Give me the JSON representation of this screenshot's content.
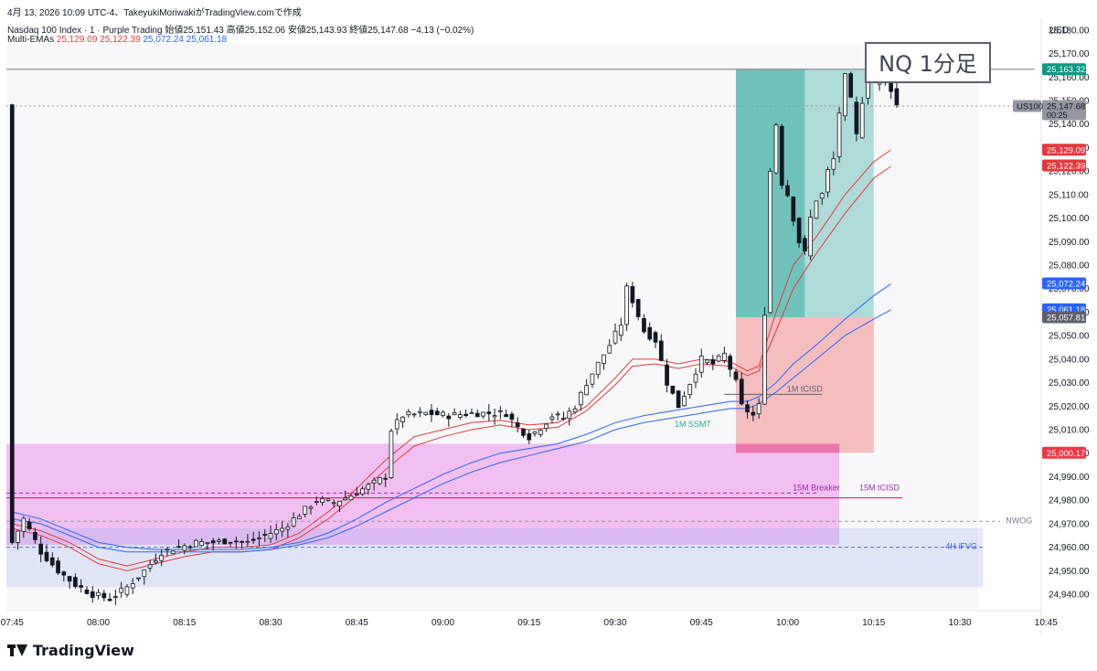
{
  "header": {
    "line1": "4月 13, 2026 10:09 UTC-4、TakeyukiMoriwakiがTradingView.comで作成",
    "symbol": "Nasdaq 100 Index · 1 · Purple Trading",
    "open_label": "始値",
    "open": "25,151.43",
    "high_label": "高値",
    "high": "25,152.06",
    "low_label": "安値",
    "low": "25,143.93",
    "close_label": "終値",
    "close": "25,147.68",
    "change": "−4.13 (−0.02%)",
    "ema_label": "Multi-EMAs",
    "ema_values": [
      "25,129.09",
      "25,122.39",
      "25,072.24",
      "25,061.18"
    ]
  },
  "title_box": "NQ 1分足",
  "footer": {
    "brand": "TradingView"
  },
  "chart_data": {
    "type": "candlestick",
    "currency": "USD",
    "ylim": [
      24933,
      25185
    ],
    "y_ticks": [
      24940,
      24950,
      24960,
      24970,
      24980,
      24990,
      25000,
      25010,
      25020,
      25030,
      25040,
      25050,
      25060,
      25070,
      25080,
      25090,
      25100,
      25110,
      25120,
      25130,
      25140,
      25150,
      25160,
      25170,
      25180
    ],
    "x_ticks": [
      "07:45",
      "08:00",
      "08:15",
      "08:30",
      "08:45",
      "09:00",
      "09:15",
      "09:30",
      "09:45",
      "10:00",
      "10:15",
      "10:30",
      "10:45"
    ],
    "x_tick_minutes": [
      0,
      15,
      30,
      45,
      60,
      75,
      90,
      105,
      120,
      135,
      150,
      165,
      180
    ],
    "x_range_minutes": [
      -1,
      179
    ],
    "colors": {
      "up": "#ffffff",
      "down": "#131722",
      "ema_red": "#e5383b",
      "ema_blue": "#2962ff"
    },
    "control_points": [
      [
        0,
        24962
      ],
      [
        2,
        24972
      ],
      [
        5,
        24958
      ],
      [
        8,
        24950
      ],
      [
        11,
        24944
      ],
      [
        14,
        24940
      ],
      [
        17,
        24938
      ],
      [
        20,
        24943
      ],
      [
        23,
        24950
      ],
      [
        26,
        24958
      ],
      [
        29,
        24960
      ],
      [
        32,
        24962
      ],
      [
        35,
        24962
      ],
      [
        38,
        24963
      ],
      [
        41,
        24962
      ],
      [
        44,
        24965
      ],
      [
        47,
        24968
      ],
      [
        50,
        24974
      ],
      [
        53,
        24980
      ],
      [
        56,
        24979
      ],
      [
        59,
        24982
      ],
      [
        62,
        24986
      ],
      [
        65,
        24990
      ],
      [
        66,
        25010
      ],
      [
        68,
        25016
      ],
      [
        72,
        25017
      ],
      [
        76,
        25016
      ],
      [
        80,
        25017
      ],
      [
        84,
        25017
      ],
      [
        86,
        25017
      ],
      [
        88,
        25011
      ],
      [
        90,
        25007
      ],
      [
        92,
        25011
      ],
      [
        94,
        25016
      ],
      [
        96,
        25015
      ],
      [
        98,
        25020
      ],
      [
        100,
        25030
      ],
      [
        102,
        25038
      ],
      [
        104,
        25046
      ],
      [
        106,
        25055
      ],
      [
        107,
        25070
      ],
      [
        108,
        25065
      ],
      [
        110,
        25052
      ],
      [
        112,
        25048
      ],
      [
        114,
        25030
      ],
      [
        116,
        25020
      ],
      [
        118,
        25030
      ],
      [
        120,
        25040
      ],
      [
        122,
        25038
      ],
      [
        124,
        25042
      ],
      [
        126,
        25030
      ],
      [
        127,
        25020
      ],
      [
        128,
        25018
      ],
      [
        129,
        25016
      ],
      [
        130,
        25020
      ],
      [
        131,
        25060
      ],
      [
        132,
        25120
      ],
      [
        133,
        25140
      ],
      [
        134,
        25115
      ],
      [
        135,
        25110
      ],
      [
        136,
        25100
      ],
      [
        137,
        25090
      ],
      [
        138,
        25085
      ],
      [
        139,
        25100
      ],
      [
        140,
        25108
      ],
      [
        141,
        25110
      ],
      [
        142,
        25120
      ],
      [
        143,
        25125
      ],
      [
        144,
        25145
      ],
      [
        145,
        25160
      ],
      [
        146,
        25150
      ],
      [
        147,
        25135
      ],
      [
        148,
        25150
      ],
      [
        149,
        25165
      ],
      [
        150,
        25158
      ],
      [
        151,
        25160
      ],
      [
        152,
        25163
      ],
      [
        153,
        25155
      ],
      [
        154,
        25148
      ]
    ],
    "emas": [
      {
        "name": "",
        "color": "#e5383b",
        "points": [
          [
            0,
            24970
          ],
          [
            5,
            24967
          ],
          [
            10,
            24962
          ],
          [
            15,
            24955
          ],
          [
            20,
            24952
          ],
          [
            25,
            24955
          ],
          [
            30,
            24958
          ],
          [
            35,
            24960
          ],
          [
            40,
            24960
          ],
          [
            45,
            24961
          ],
          [
            50,
            24966
          ],
          [
            55,
            24975
          ],
          [
            60,
            24985
          ],
          [
            65,
            24997
          ],
          [
            70,
            25007
          ],
          [
            75,
            25010
          ],
          [
            80,
            25013
          ],
          [
            85,
            25014
          ],
          [
            90,
            25012
          ],
          [
            95,
            25013
          ],
          [
            100,
            25020
          ],
          [
            105,
            25032
          ],
          [
            108,
            25040
          ],
          [
            112,
            25040
          ],
          [
            116,
            25038
          ],
          [
            120,
            25040
          ],
          [
            125,
            25039
          ],
          [
            128,
            25035
          ],
          [
            130,
            25037
          ],
          [
            133,
            25060
          ],
          [
            136,
            25080
          ],
          [
            140,
            25092
          ],
          [
            145,
            25110
          ],
          [
            150,
            25124
          ],
          [
            153,
            25129
          ]
        ]
      },
      {
        "name": "",
        "color": "#e5383b",
        "points": [
          [
            0,
            24968
          ],
          [
            5,
            24965
          ],
          [
            10,
            24960
          ],
          [
            15,
            24953
          ],
          [
            20,
            24950
          ],
          [
            25,
            24953
          ],
          [
            30,
            24956
          ],
          [
            35,
            24958
          ],
          [
            40,
            24958
          ],
          [
            45,
            24959
          ],
          [
            50,
            24964
          ],
          [
            55,
            24972
          ],
          [
            60,
            24982
          ],
          [
            65,
            24993
          ],
          [
            70,
            25003
          ],
          [
            75,
            25007
          ],
          [
            80,
            25010
          ],
          [
            85,
            25012
          ],
          [
            90,
            25010
          ],
          [
            95,
            25011
          ],
          [
            100,
            25018
          ],
          [
            105,
            25029
          ],
          [
            108,
            25037
          ],
          [
            112,
            25038
          ],
          [
            116,
            25036
          ],
          [
            120,
            25038
          ],
          [
            125,
            25037
          ],
          [
            128,
            25033
          ],
          [
            130,
            25035
          ],
          [
            133,
            25052
          ],
          [
            136,
            25070
          ],
          [
            140,
            25085
          ],
          [
            145,
            25102
          ],
          [
            150,
            25117
          ],
          [
            153,
            25122
          ]
        ]
      },
      {
        "name": "",
        "color": "#2962ff",
        "points": [
          [
            0,
            24975
          ],
          [
            5,
            24972
          ],
          [
            10,
            24967
          ],
          [
            15,
            24962
          ],
          [
            20,
            24960
          ],
          [
            25,
            24959
          ],
          [
            30,
            24959
          ],
          [
            35,
            24959
          ],
          [
            40,
            24959
          ],
          [
            45,
            24960
          ],
          [
            50,
            24962
          ],
          [
            55,
            24966
          ],
          [
            60,
            24972
          ],
          [
            65,
            24979
          ],
          [
            70,
            24985
          ],
          [
            75,
            24991
          ],
          [
            80,
            24996
          ],
          [
            85,
            25000
          ],
          [
            90,
            25002
          ],
          [
            95,
            25004
          ],
          [
            100,
            25008
          ],
          [
            105,
            25013
          ],
          [
            110,
            25016
          ],
          [
            115,
            25018
          ],
          [
            120,
            25020
          ],
          [
            125,
            25022
          ],
          [
            128,
            25022
          ],
          [
            130,
            25024
          ],
          [
            133,
            25030
          ],
          [
            136,
            25038
          ],
          [
            140,
            25046
          ],
          [
            145,
            25057
          ],
          [
            150,
            25067
          ],
          [
            153,
            25072
          ]
        ]
      },
      {
        "name": "",
        "color": "#2962ff",
        "points": [
          [
            0,
            24972
          ],
          [
            5,
            24970
          ],
          [
            10,
            24965
          ],
          [
            15,
            24960
          ],
          [
            20,
            24958
          ],
          [
            25,
            24958
          ],
          [
            30,
            24958
          ],
          [
            35,
            24958
          ],
          [
            40,
            24958
          ],
          [
            45,
            24959
          ],
          [
            50,
            24961
          ],
          [
            55,
            24964
          ],
          [
            60,
            24969
          ],
          [
            65,
            24975
          ],
          [
            70,
            24981
          ],
          [
            75,
            24987
          ],
          [
            80,
            24992
          ],
          [
            85,
            24996
          ],
          [
            90,
            24999
          ],
          [
            95,
            25002
          ],
          [
            100,
            25005
          ],
          [
            105,
            25010
          ],
          [
            110,
            25013
          ],
          [
            115,
            25015
          ],
          [
            120,
            25017
          ],
          [
            125,
            25019
          ],
          [
            128,
            25019
          ],
          [
            130,
            25021
          ],
          [
            133,
            25026
          ],
          [
            136,
            25032
          ],
          [
            140,
            25040
          ],
          [
            145,
            25050
          ],
          [
            150,
            25057
          ],
          [
            153,
            25061
          ]
        ]
      }
    ],
    "zones": [
      {
        "name": "pink-fvg-zone",
        "x0": -1,
        "x1": 144,
        "y0": 24961,
        "y1": 25004,
        "color": "rgba(232,121,232,0.45)"
      },
      {
        "name": "blue-fvg-zone",
        "x0": -1,
        "x1": 169,
        "y0": 24943,
        "y1": 24968,
        "color": "rgba(150,170,235,0.25)"
      },
      {
        "name": "target-zone",
        "x0": 126,
        "x1": 150,
        "y0": 25057.81,
        "y1": 25163.32,
        "color": "rgba(38,166,154,0.35)"
      },
      {
        "name": "target-zone-filled",
        "x0": 126,
        "x1": 138,
        "y0": 25057.81,
        "y1": 25163.32,
        "color": "rgba(38,166,154,0.45)"
      },
      {
        "name": "stop-zone",
        "x0": 126,
        "x1": 150,
        "y0": 25000.17,
        "y1": 25057.81,
        "color": "rgba(239,83,80,0.35)"
      },
      {
        "name": "stop-zone-bottom",
        "x0": 126,
        "x1": 144,
        "y0": 25000.17,
        "y1": 25004,
        "color": "rgba(232,80,160,0.5)"
      }
    ],
    "hlines": [
      {
        "name": "level-25163",
        "y": 25163.32,
        "x0": -1,
        "x1": 178,
        "color": "#787b86",
        "dash": ""
      },
      {
        "name": "level-current",
        "y": 25147.68,
        "x0": -1,
        "x1": 200,
        "color": "#9598a1",
        "dash": "2,3"
      },
      {
        "name": "15m-breaker-line",
        "y": 24983,
        "x0": -1,
        "x1": 140,
        "color": "#9c27b0",
        "dash": "4,3"
      },
      {
        "name": "15m-tcisd-line",
        "y": 24981,
        "x0": -1,
        "x1": 155,
        "color": "#c2185b",
        "dash": ""
      },
      {
        "name": "nwog-line",
        "y": 24971,
        "x0": -1,
        "x1": 172,
        "color": "#9598a1",
        "dash": "4,3"
      },
      {
        "name": "4h-ifvg-line",
        "y": 24960,
        "x0": -1,
        "x1": 169,
        "color": "#5b6bc0",
        "dash": "4,3"
      },
      {
        "name": "1m-tcisd-line",
        "y": 25025,
        "x0": 124,
        "x1": 141,
        "color": "#5d606b",
        "dash": ""
      }
    ],
    "annotations": [
      {
        "name": "annotation-1m-tcisd",
        "text": "1M tCISD",
        "x": 138,
        "y": 25025,
        "color": "#5d606b",
        "anchor": "middle"
      },
      {
        "name": "annotation-1m-ssmt",
        "text": "1M SSMT",
        "x": 118.5,
        "y": 25010,
        "color": "#26a69a",
        "anchor": "middle"
      },
      {
        "name": "annotation-15m-breaker",
        "text": "15M Breaker",
        "x": 140,
        "y": 24983,
        "color": "#9c27b0",
        "anchor": "middle"
      },
      {
        "name": "annotation-15m-tcisd",
        "text": "15M tCISD",
        "x": 151,
        "y": 24983,
        "color": "#9c27b0",
        "anchor": "middle"
      },
      {
        "name": "annotation-nwog",
        "text": "NWOG",
        "x": 173,
        "y": 24969,
        "color": "#787b86",
        "anchor": "start"
      },
      {
        "name": "annotation-4h-ifvg",
        "text": "4H iFVG",
        "x": 168,
        "y": 24958,
        "color": "#2962ff",
        "anchor": "end"
      }
    ],
    "price_tags": [
      {
        "name": "tag-25163",
        "text": "25,163.32",
        "y": 25163.32,
        "bg": "#089981",
        "fg": "#ffffff"
      },
      {
        "name": "tag-current",
        "text": "25,147.68",
        "sub": "00:25",
        "y": 25147.68,
        "bg": "#9598a1",
        "fg": "#131722"
      },
      {
        "name": "tag-ema1",
        "text": "25,129.09",
        "y": 25129.09,
        "bg": "#e5383b",
        "fg": "#ffffff"
      },
      {
        "name": "tag-ema2",
        "text": "25,122.39",
        "y": 25122.39,
        "bg": "#e5383b",
        "fg": "#ffffff"
      },
      {
        "name": "tag-ema3",
        "text": "25,072.24",
        "y": 25072.24,
        "bg": "#2962ff",
        "fg": "#ffffff"
      },
      {
        "name": "tag-ema4",
        "text": "25,061.18",
        "y": 25061.18,
        "bg": "#2962ff",
        "fg": "#ffffff"
      },
      {
        "name": "tag-25057",
        "text": "25,057.81",
        "y": 25057.81,
        "bg": "#5d606b",
        "fg": "#ffffff"
      },
      {
        "name": "tag-25000",
        "text": "25,000.17",
        "y": 25000.17,
        "bg": "#f23645",
        "fg": "#ffffff"
      }
    ],
    "symbol_tag": "US100"
  }
}
